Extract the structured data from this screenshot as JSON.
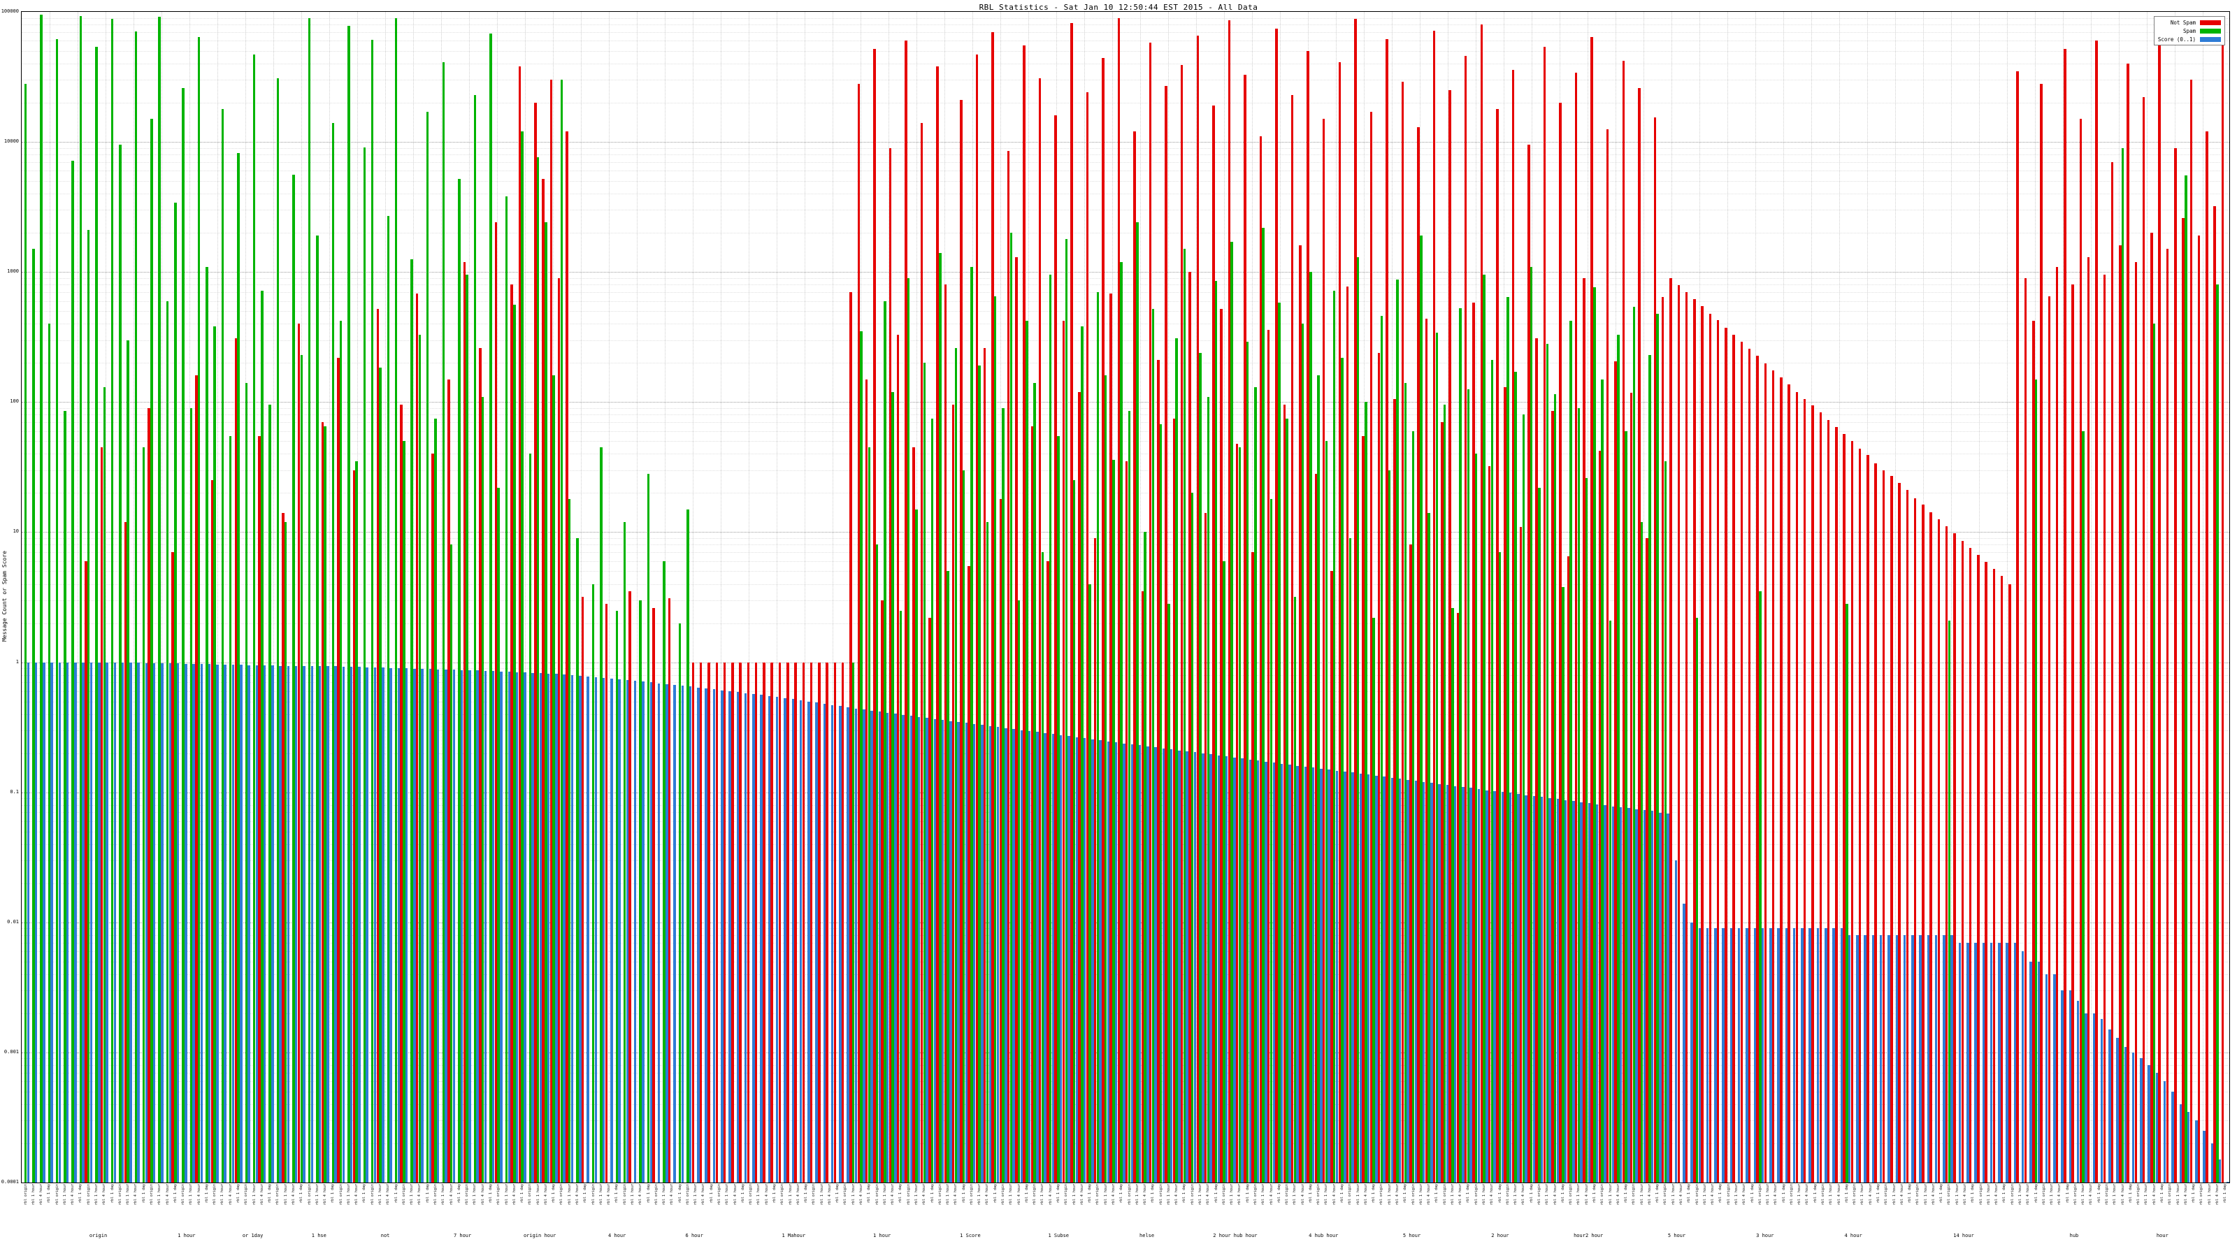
{
  "title": "RBL Statistics - Sat Jan 10 12:50:44 EST 2015 - All Data",
  "chart_data": {
    "type": "bar",
    "scale": "log",
    "title": "RBL Statistics - Sat Jan 10 12:50:44 EST 2015 - All Data",
    "xlabel": "",
    "ylabel": "Message Count or Spam Score",
    "ylim": [
      0.0001,
      100000
    ],
    "yticks": [
      "100000",
      "10000",
      "1000",
      "100",
      "10",
      "1",
      "0.1",
      "0.01",
      "0.001",
      "0.0001"
    ],
    "grid": true,
    "legend_position": "top-right",
    "legend": [
      {
        "label": "Not Spam",
        "color": "#e60000"
      },
      {
        "label": "Spam",
        "color": "#00b400"
      },
      {
        "label": "Score (0..1)",
        "color": "#2e7cd6"
      }
    ],
    "series_order": [
      "not_spam",
      "spam",
      "score"
    ],
    "xaxis": {
      "tick_labels_illegible": true,
      "sample_labels": [
        "rbl origin",
        "rbl 1 hour",
        "rbl 4 hour",
        "rbl 1 day"
      ],
      "group_labels": [
        {
          "pos": 3.5,
          "text": "origin"
        },
        {
          "pos": 7.5,
          "text": "1 hour"
        },
        {
          "pos": 10.5,
          "text": "or 1day"
        },
        {
          "pos": 13.5,
          "text": "1 hse"
        },
        {
          "pos": 16.5,
          "text": "not"
        },
        {
          "pos": 20,
          "text": "7 hour"
        },
        {
          "pos": 23.5,
          "text": "origin hour"
        },
        {
          "pos": 27,
          "text": "4 hour"
        },
        {
          "pos": 30.5,
          "text": "6 hour"
        },
        {
          "pos": 35,
          "text": "1 Mahour"
        },
        {
          "pos": 39,
          "text": "1 hour"
        },
        {
          "pos": 43,
          "text": "1 Score"
        },
        {
          "pos": 47,
          "text": "1 Subse"
        },
        {
          "pos": 51,
          "text": "helse"
        },
        {
          "pos": 55,
          "text": "2 hour hub hour"
        },
        {
          "pos": 59,
          "text": "4 hub hour"
        },
        {
          "pos": 63,
          "text": "5 hour"
        },
        {
          "pos": 67,
          "text": "2 hour"
        },
        {
          "pos": 71,
          "text": "hour2 hour"
        },
        {
          "pos": 75,
          "text": "5 hour"
        },
        {
          "pos": 79,
          "text": "3 hour"
        },
        {
          "pos": 83,
          "text": "4 hour"
        },
        {
          "pos": 88,
          "text": "14 hour"
        },
        {
          "pos": 93,
          "text": "hub"
        },
        {
          "pos": 97,
          "text": "hour"
        }
      ]
    },
    "bars": [
      [
        null,
        28000,
        1
      ],
      [
        null,
        1500,
        1
      ],
      [
        null,
        95000,
        1
      ],
      [
        null,
        400,
        1
      ],
      [
        null,
        62000,
        1
      ],
      [
        null,
        85,
        1
      ],
      [
        null,
        7200,
        1
      ],
      [
        null,
        93000,
        1
      ],
      [
        6,
        2100,
        1
      ],
      [
        null,
        54000,
        1
      ],
      [
        45,
        130,
        0.99
      ],
      [
        null,
        88000,
        0.99
      ],
      [
        null,
        9500,
        0.99
      ],
      [
        12,
        300,
        0.99
      ],
      [
        null,
        71000,
        0.99
      ],
      [
        null,
        45,
        0.98
      ],
      [
        90,
        15000,
        0.98
      ],
      [
        null,
        92000,
        0.98
      ],
      [
        null,
        600,
        0.98
      ],
      [
        7,
        3400,
        0.98
      ],
      [
        null,
        26000,
        0.97
      ],
      [
        null,
        90,
        0.97
      ],
      [
        160,
        64000,
        0.97
      ],
      [
        null,
        1100,
        0.97
      ],
      [
        25,
        380,
        0.96
      ],
      [
        null,
        18000,
        0.96
      ],
      [
        null,
        55,
        0.96
      ],
      [
        310,
        8200,
        0.96
      ],
      [
        null,
        140,
        0.95
      ],
      [
        null,
        47000,
        0.95
      ],
      [
        55,
        720,
        0.95
      ],
      [
        null,
        95,
        0.95
      ],
      [
        null,
        31000,
        0.94
      ],
      [
        14,
        12,
        0.94
      ],
      [
        null,
        5600,
        0.94
      ],
      [
        400,
        230,
        0.94
      ],
      [
        null,
        89000,
        0.93
      ],
      [
        null,
        1900,
        0.93
      ],
      [
        70,
        65,
        0.93
      ],
      [
        null,
        14000,
        0.93
      ],
      [
        220,
        420,
        0.92
      ],
      [
        null,
        78000,
        0.92
      ],
      [
        30,
        35,
        0.92
      ],
      [
        null,
        9100,
        0.91
      ],
      [
        null,
        61000,
        0.91
      ],
      [
        520,
        185,
        0.91
      ],
      [
        null,
        2700,
        0.9
      ],
      [
        null,
        90000,
        0.9
      ],
      [
        95,
        50,
        0.9
      ],
      [
        null,
        1250,
        0.89
      ],
      [
        680,
        330,
        0.89
      ],
      [
        null,
        17000,
        0.89
      ],
      [
        40,
        75,
        0.88
      ],
      [
        null,
        41000,
        0.88
      ],
      [
        150,
        8,
        0.88
      ],
      [
        null,
        5200,
        0.87
      ],
      [
        1200,
        950,
        0.87
      ],
      [
        null,
        23000,
        0.87
      ],
      [
        260,
        110,
        0.86
      ],
      [
        null,
        68000,
        0.86
      ],
      [
        2400,
        22,
        0.85
      ],
      [
        null,
        3800,
        0.85
      ],
      [
        800,
        560,
        0.84
      ],
      [
        38000,
        12000,
        0.84
      ],
      [
        null,
        40,
        0.83
      ],
      [
        20000,
        7600,
        0.83
      ],
      [
        5200,
        2400,
        0.82
      ],
      [
        30000,
        160,
        0.82
      ],
      [
        900,
        30000,
        0.81
      ],
      [
        12000,
        18,
        0.8
      ],
      [
        null,
        9,
        0.79
      ],
      [
        3.2,
        null,
        0.78
      ],
      [
        null,
        4,
        0.77
      ],
      [
        null,
        45,
        0.76
      ],
      [
        2.8,
        null,
        0.75
      ],
      [
        null,
        2.5,
        0.74
      ],
      [
        null,
        12,
        0.73
      ],
      [
        3.5,
        null,
        0.72
      ],
      [
        null,
        3,
        0.71
      ],
      [
        null,
        28,
        0.7
      ],
      [
        2.6,
        null,
        0.69
      ],
      [
        null,
        6,
        0.68
      ],
      [
        3.1,
        null,
        0.67
      ],
      [
        null,
        2,
        0.66
      ],
      [
        null,
        15,
        0.65
      ],
      [
        1,
        null,
        0.64
      ],
      [
        1,
        null,
        0.63
      ],
      [
        1,
        null,
        0.62
      ],
      [
        1,
        null,
        0.61
      ],
      [
        1,
        null,
        0.6
      ],
      [
        1,
        null,
        0.59
      ],
      [
        1,
        null,
        0.58
      ],
      [
        1,
        null,
        0.57
      ],
      [
        1,
        null,
        0.56
      ],
      [
        1,
        null,
        0.55
      ],
      [
        1,
        null,
        0.54
      ],
      [
        1,
        null,
        0.53
      ],
      [
        1,
        null,
        0.52
      ],
      [
        1,
        null,
        0.51
      ],
      [
        1,
        null,
        0.5
      ],
      [
        1,
        null,
        0.49
      ],
      [
        1,
        null,
        0.48
      ],
      [
        1,
        null,
        0.47
      ],
      [
        1,
        null,
        0.46
      ],
      [
        1,
        null,
        0.45
      ],
      [
        700,
        1,
        0.44
      ],
      [
        28000,
        350,
        0.432
      ],
      [
        150,
        45,
        0.424
      ],
      [
        52000,
        8,
        0.417
      ],
      [
        3,
        600,
        0.409
      ],
      [
        9000,
        120,
        0.402
      ],
      [
        330,
        2.5,
        0.395
      ],
      [
        60000,
        900,
        0.388
      ],
      [
        45,
        15,
        0.381
      ],
      [
        14000,
        200,
        0.374
      ],
      [
        2.2,
        75,
        0.367
      ],
      [
        38000,
        1400,
        0.361
      ],
      [
        800,
        5,
        0.354
      ],
      [
        95,
        260,
        0.348
      ],
      [
        21000,
        30,
        0.342
      ],
      [
        5.5,
        1100,
        0.336
      ],
      [
        47000,
        190,
        0.33
      ],
      [
        260,
        12,
        0.324
      ],
      [
        70000,
        650,
        0.318
      ],
      [
        18,
        90,
        0.312
      ],
      [
        8500,
        2000,
        0.307
      ],
      [
        1300,
        3,
        0.301
      ],
      [
        55000,
        420,
        0.296
      ],
      [
        65,
        140,
        0.291
      ],
      [
        31000,
        7,
        0.285
      ],
      [
        6,
        950,
        0.28
      ],
      [
        16000,
        55,
        0.275
      ],
      [
        420,
        1800,
        0.27
      ],
      [
        82000,
        25,
        0.266
      ],
      [
        120,
        380,
        0.261
      ],
      [
        24000,
        4,
        0.256
      ],
      [
        9,
        700,
        0.252
      ],
      [
        44000,
        160,
        0.247
      ],
      [
        680,
        36,
        0.243
      ],
      [
        90000,
        1200,
        0.238
      ],
      [
        35,
        85,
        0.234
      ],
      [
        12000,
        2400,
        0.23
      ],
      [
        3.5,
        10,
        0.226
      ],
      [
        58000,
        520,
        0.222
      ],
      [
        210,
        68,
        0.218
      ],
      [
        27000,
        2.8,
        0.214
      ],
      [
        75,
        310,
        0.21
      ],
      [
        39000,
        1500,
        0.206
      ],
      [
        1000,
        20,
        0.203
      ],
      [
        66000,
        240,
        0.199
      ],
      [
        14,
        110,
        0.196
      ],
      [
        19000,
        850,
        0.192
      ],
      [
        520,
        6,
        0.189
      ],
      [
        86000,
        1700,
        0.185
      ],
      [
        48,
        45,
        0.182
      ],
      [
        33000,
        290,
        0.179
      ],
      [
        7,
        130,
        0.176
      ],
      [
        11000,
        2200,
        0.172
      ],
      [
        360,
        18,
        0.169
      ],
      [
        74000,
        580,
        0.166
      ],
      [
        95,
        75,
        0.163
      ],
      [
        23000,
        3.2,
        0.16
      ],
      [
        1600,
        400,
        0.158
      ],
      [
        50000,
        1000,
        0.155
      ],
      [
        28,
        160,
        0.152
      ],
      [
        15000,
        50,
        0.149
      ],
      [
        5,
        720,
        0.147
      ],
      [
        41000,
        220,
        0.144
      ],
      [
        770,
        9,
        0.142
      ],
      [
        88000,
        1300,
        0.139
      ],
      [
        55,
        100,
        0.137
      ],
      [
        17000,
        2.2,
        0.134
      ],
      [
        240,
        460,
        0.132
      ],
      [
        62000,
        30,
        0.129
      ],
      [
        105,
        880,
        0.127
      ],
      [
        29000,
        140,
        0.125
      ],
      [
        8,
        60,
        0.123
      ],
      [
        13000,
        1900,
        0.12
      ],
      [
        440,
        14,
        0.118
      ],
      [
        72000,
        340,
        0.116
      ],
      [
        70,
        95,
        0.114
      ],
      [
        25000,
        2.6,
        0.112
      ],
      [
        2.4,
        530,
        0.11
      ],
      [
        46000,
        125,
        0.108
      ],
      [
        580,
        40,
        0.106
      ],
      [
        80000,
        950,
        0.104
      ],
      [
        32,
        210,
        0.102
      ],
      [
        18000,
        7,
        0.101
      ],
      [
        130,
        640,
        0.099
      ],
      [
        36000,
        170,
        0.097
      ],
      [
        11,
        80,
        0.095
      ],
      [
        9500,
        1100,
        0.094
      ],
      [
        310,
        22,
        0.092
      ],
      [
        54000,
        280,
        0.09
      ],
      [
        85,
        115,
        0.089
      ],
      [
        20000,
        3.8,
        0.087
      ],
      [
        6.5,
        420,
        0.086
      ],
      [
        34000,
        90,
        0.084
      ],
      [
        900,
        26,
        0.083
      ],
      [
        64000,
        760,
        0.081
      ],
      [
        42,
        150,
        0.08
      ],
      [
        12500,
        2.1,
        0.078
      ],
      [
        205,
        330,
        0.077
      ],
      [
        42000,
        60,
        0.076
      ],
      [
        118,
        540,
        0.074
      ],
      [
        26000,
        12,
        0.073
      ],
      [
        9,
        230,
        0.072
      ],
      [
        15500,
        480,
        0.07
      ],
      [
        640,
        35,
        0.069
      ],
      [
        900,
        null,
        0.03
      ],
      [
        795,
        null,
        0.014
      ],
      [
        700,
        null,
        0.01
      ],
      [
        620,
        2.2,
        0.009
      ],
      [
        545,
        null,
        0.009
      ],
      [
        480,
        null,
        0.009
      ],
      [
        425,
        null,
        0.009
      ],
      [
        375,
        null,
        0.009
      ],
      [
        330,
        null,
        0.009
      ],
      [
        290,
        null,
        0.009
      ],
      [
        256,
        null,
        0.009
      ],
      [
        226,
        3.5,
        0.009
      ],
      [
        199,
        null,
        0.009
      ],
      [
        176,
        null,
        0.009
      ],
      [
        155,
        null,
        0.009
      ],
      [
        137,
        null,
        0.009
      ],
      [
        120,
        null,
        0.009
      ],
      [
        106,
        null,
        0.009
      ],
      [
        94,
        null,
        0.009
      ],
      [
        83,
        null,
        0.009
      ],
      [
        73,
        null,
        0.009
      ],
      [
        64,
        null,
        0.009
      ],
      [
        57,
        2.8,
        0.008
      ],
      [
        50,
        null,
        0.008
      ],
      [
        44,
        null,
        0.008
      ],
      [
        39,
        null,
        0.008
      ],
      [
        34,
        null,
        0.008
      ],
      [
        30,
        null,
        0.008
      ],
      [
        27,
        null,
        0.008
      ],
      [
        24,
        null,
        0.008
      ],
      [
        21,
        null,
        0.008
      ],
      [
        18.3,
        null,
        0.008
      ],
      [
        16.2,
        null,
        0.008
      ],
      [
        14.3,
        null,
        0.008
      ],
      [
        12.6,
        null,
        0.008
      ],
      [
        11.1,
        2.1,
        0.008
      ],
      [
        9.8,
        null,
        0.007
      ],
      [
        8.6,
        null,
        0.007
      ],
      [
        7.6,
        null,
        0.007
      ],
      [
        6.7,
        null,
        0.007
      ],
      [
        5.9,
        null,
        0.007
      ],
      [
        5.2,
        null,
        0.007
      ],
      [
        4.6,
        null,
        0.007
      ],
      [
        4,
        null,
        0.007
      ],
      [
        35000,
        null,
        0.006
      ],
      [
        900,
        null,
        0.005
      ],
      [
        420,
        150,
        0.005
      ],
      [
        28000,
        null,
        0.004
      ],
      [
        650,
        null,
        0.004
      ],
      [
        1100,
        null,
        0.003
      ],
      [
        52000,
        null,
        0.003
      ],
      [
        800,
        null,
        0.0025
      ],
      [
        15000,
        60,
        0.002
      ],
      [
        1300,
        null,
        0.002
      ],
      [
        60000,
        null,
        0.0018
      ],
      [
        950,
        null,
        0.0015
      ],
      [
        7000,
        null,
        0.0013
      ],
      [
        1600,
        9000,
        0.0011
      ],
      [
        40000,
        null,
        0.001
      ],
      [
        1200,
        null,
        0.0009
      ],
      [
        22000,
        null,
        0.0008
      ],
      [
        2000,
        400,
        0.0007
      ],
      [
        55000,
        null,
        0.0006
      ],
      [
        1500,
        null,
        0.0005
      ],
      [
        9000,
        null,
        0.0004
      ],
      [
        2600,
        5500,
        0.00035
      ],
      [
        30000,
        null,
        0.0003
      ],
      [
        1900,
        null,
        0.00025
      ],
      [
        12000,
        null,
        0.0002
      ],
      [
        3200,
        800,
        0.00015
      ],
      [
        65000,
        null,
        0.0001
      ]
    ]
  }
}
